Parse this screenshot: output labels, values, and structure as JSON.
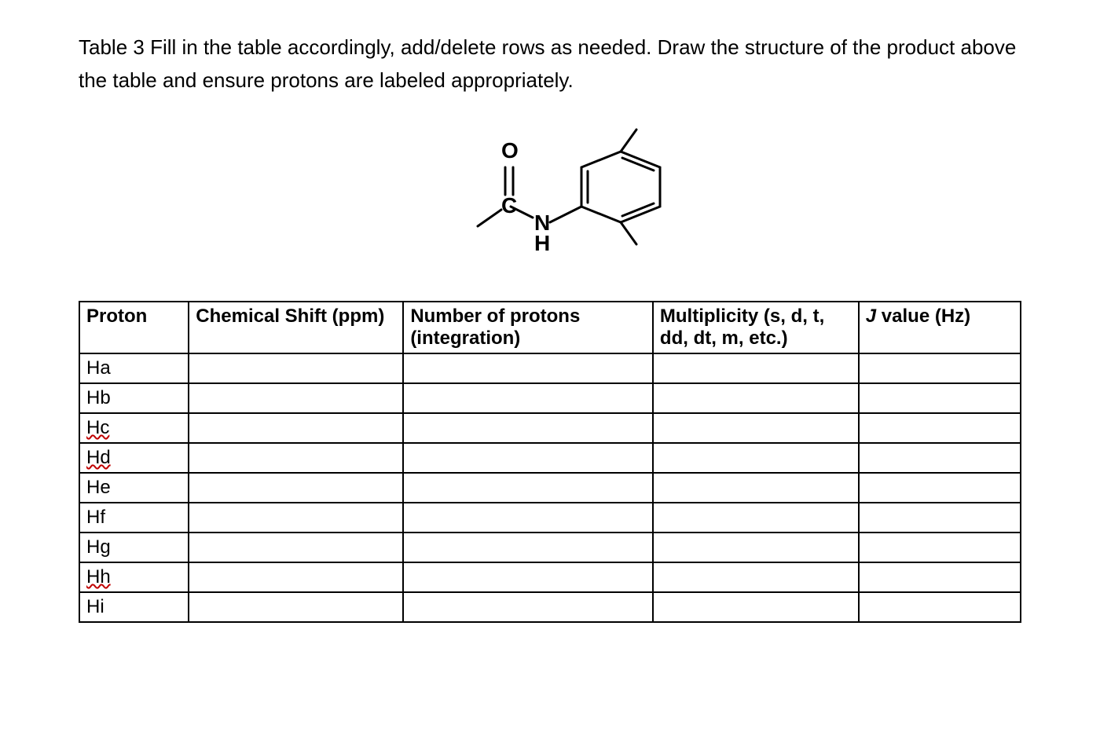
{
  "caption": "Table 3 Fill in the table accordingly, add/delete rows as needed. Draw the structure of the product above the table and ensure protons are labeled appropriately.",
  "structure": {
    "type": "chemical-structure",
    "description": "N-(2,6-dimethylphenyl)propanamide skeletal structure",
    "atom_labels": [
      "O",
      "C",
      "N",
      "H"
    ],
    "line_color": "#000000",
    "line_width": 3,
    "font_size": 28,
    "font_weight": "bold"
  },
  "table": {
    "type": "table",
    "border_color": "#000000",
    "border_width": 2,
    "header_font_weight": "bold",
    "cell_font_size": 24,
    "columns": [
      {
        "label": "Proton",
        "width_pct": 11
      },
      {
        "label": "Chemical Shift (ppm)",
        "width_pct": 23
      },
      {
        "label": "Number of protons (integration)",
        "width_pct": 27
      },
      {
        "label": "Multiplicity (s, d, t, dd, dt, m, etc.)",
        "width_pct": 22
      },
      {
        "label_prefix_italic": "J",
        "label_rest": " value (Hz)",
        "width_pct": 17
      }
    ],
    "rows": [
      {
        "proton": "Ha",
        "squiggle": false,
        "shift": "",
        "integration": "",
        "multiplicity": "",
        "j": ""
      },
      {
        "proton": "Hb",
        "squiggle": false,
        "shift": "",
        "integration": "",
        "multiplicity": "",
        "j": ""
      },
      {
        "proton": "Hc",
        "squiggle": true,
        "shift": "",
        "integration": "",
        "multiplicity": "",
        "j": ""
      },
      {
        "proton": "Hd",
        "squiggle": true,
        "shift": "",
        "integration": "",
        "multiplicity": "",
        "j": ""
      },
      {
        "proton": "He",
        "squiggle": false,
        "shift": "",
        "integration": "",
        "multiplicity": "",
        "j": ""
      },
      {
        "proton": "Hf",
        "squiggle": false,
        "shift": "",
        "integration": "",
        "multiplicity": "",
        "j": ""
      },
      {
        "proton": "Hg",
        "squiggle": false,
        "shift": "",
        "integration": "",
        "multiplicity": "",
        "j": ""
      },
      {
        "proton": "Hh",
        "squiggle": true,
        "shift": "",
        "integration": "",
        "multiplicity": "",
        "j": ""
      },
      {
        "proton": "Hi",
        "squiggle": false,
        "shift": "",
        "integration": "",
        "multiplicity": "",
        "j": ""
      }
    ],
    "squiggle_color": "#c00000"
  }
}
